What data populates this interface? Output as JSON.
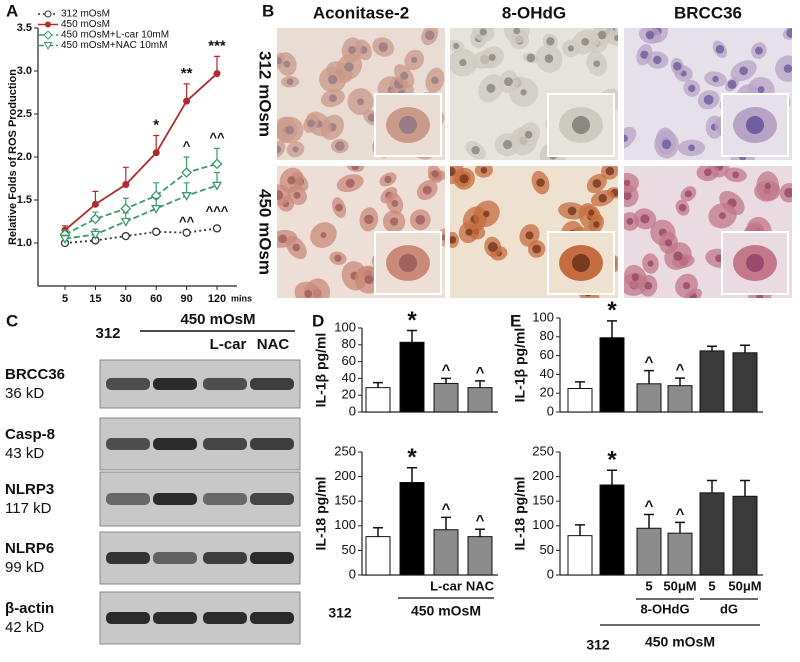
{
  "panel_letters": [
    "A",
    "B",
    "C",
    "D",
    "E"
  ],
  "chart_data": [
    {
      "type": "line",
      "ylabel": "Relative Folds of ROS Production",
      "xlabel": "mins",
      "categories": [
        "5",
        "15",
        "30",
        "60",
        "90",
        "120"
      ],
      "ylim": [
        0.5,
        3.5
      ],
      "yticks": [
        {
          "value": 1,
          "label": "1.0"
        },
        1.5,
        {
          "value": 2,
          "label": "2.0"
        },
        2.5,
        {
          "value": 3,
          "label": "3.0"
        },
        3.5
      ],
      "series": [
        {
          "name": "312 mOsM",
          "color": "#333333",
          "marker": "circle",
          "line_style": "dotted",
          "values": [
            1.0,
            1.03,
            1.08,
            1.13,
            1.12,
            1.17
          ],
          "errors": [
            0.02,
            0.03,
            0.03,
            0.03,
            0.03,
            0.03
          ],
          "annotations": [
            null,
            null,
            null,
            null,
            null,
            null
          ]
        },
        {
          "name": "450 mOsM",
          "color": "#b22a2a",
          "marker": "filled-circle",
          "line_style": "solid",
          "values": [
            1.15,
            1.45,
            1.68,
            2.05,
            2.65,
            2.97
          ],
          "errors": [
            0.05,
            0.15,
            0.2,
            0.2,
            0.2,
            0.2
          ],
          "annotations": [
            null,
            null,
            null,
            "*",
            "**",
            "***"
          ]
        },
        {
          "name": "450 mOsM+L-car 10mM",
          "color": "#3a9a6a",
          "marker": "diamond",
          "line_style": "dashed",
          "values": [
            1.1,
            1.28,
            1.4,
            1.55,
            1.82,
            1.92
          ],
          "errors": [
            0.05,
            0.08,
            0.12,
            0.15,
            0.18,
            0.18
          ],
          "annotations": [
            null,
            null,
            null,
            null,
            "^",
            "^^"
          ]
        },
        {
          "name": "450 mOsM+NAC 10mM",
          "color": "#3a9a6a",
          "marker": "triangle",
          "line_style": "dashed",
          "values": [
            1.05,
            1.1,
            1.25,
            1.4,
            1.55,
            1.67
          ],
          "errors": [
            0.04,
            0.06,
            0.1,
            0.12,
            0.15,
            0.15
          ],
          "annotations": [
            null,
            null,
            null,
            null,
            "^^",
            "^^^"
          ]
        }
      ]
    },
    {
      "type": "bar",
      "ylabel": "IL-1β pg/ml",
      "categories": [
        null,
        null,
        null,
        null
      ],
      "values": [
        29,
        83,
        34,
        29
      ],
      "errors": [
        6,
        14,
        6,
        8
      ],
      "colors": [
        "#ffffff",
        "#000000",
        "#8c8c8c",
        "#8c8c8c"
      ],
      "bar_annotations": [
        null,
        "*",
        "^",
        "^"
      ],
      "ylim": [
        0,
        100
      ],
      "yticks": [
        0,
        20,
        40,
        60,
        80,
        100
      ]
    },
    {
      "type": "bar",
      "ylabel": "IL-18 pg/ml",
      "categories": [
        "312",
        null,
        "L-car",
        "NAC"
      ],
      "group_label": "450 mOsM",
      "values": [
        78,
        188,
        92,
        78
      ],
      "errors": [
        18,
        30,
        25,
        15
      ],
      "colors": [
        "#ffffff",
        "#000000",
        "#8c8c8c",
        "#8c8c8c"
      ],
      "bar_annotations": [
        null,
        "*",
        "^",
        "^"
      ],
      "ylim": [
        0,
        250
      ],
      "yticks": [
        0,
        50,
        100,
        150,
        200,
        250
      ]
    },
    {
      "type": "bar",
      "ylabel": "IL-1β pg/ml",
      "categories": [
        null,
        null,
        null,
        null,
        null,
        null
      ],
      "values": [
        25,
        79,
        30,
        28,
        65,
        63
      ],
      "errors": [
        7,
        18,
        14,
        8,
        5,
        8
      ],
      "colors": [
        "#ffffff",
        "#000000",
        "#8c8c8c",
        "#8c8c8c",
        "#3a3a3a",
        "#3a3a3a"
      ],
      "bar_annotations": [
        null,
        "*",
        "^",
        "^",
        null,
        null
      ],
      "ylim": [
        0,
        100
      ],
      "yticks": [
        0,
        20,
        40,
        60,
        80,
        100
      ]
    },
    {
      "type": "bar",
      "ylabel": "IL-18 pg/ml",
      "categories": [
        "312",
        null,
        "5",
        "50μM",
        "5",
        "50μM"
      ],
      "subgroup_labels": [
        "8-OHdG",
        "dG"
      ],
      "group_label": "450 mOsM",
      "values": [
        80,
        183,
        95,
        85,
        167,
        160
      ],
      "errors": [
        22,
        30,
        28,
        22,
        25,
        32
      ],
      "colors": [
        "#ffffff",
        "#000000",
        "#8c8c8c",
        "#8c8c8c",
        "#3a3a3a",
        "#3a3a3a"
      ],
      "bar_annotations": [
        null,
        "*",
        "^",
        "^",
        null,
        null
      ],
      "ylim": [
        0,
        250
      ],
      "yticks": [
        0,
        50,
        100,
        150,
        200,
        250
      ]
    }
  ],
  "staining": {
    "columns": [
      "Aconitase-2",
      "8-OHdG",
      "BRCC36"
    ],
    "rows": [
      "312 mOsm",
      "450 mOsm"
    ]
  },
  "blot": {
    "lanes": [
      "312",
      "L-car",
      "NAC"
    ],
    "group_label": "450 mOsM",
    "proteins": [
      {
        "name": "BRCC36",
        "size": "36 kD"
      },
      {
        "name": "Casp-8",
        "size": "43 kD"
      },
      {
        "name": "NLRP3",
        "size": "117 kD"
      },
      {
        "name": "NLRP6",
        "size": "99 kD"
      },
      {
        "name": "β-actin",
        "size": "42 kD"
      }
    ]
  }
}
